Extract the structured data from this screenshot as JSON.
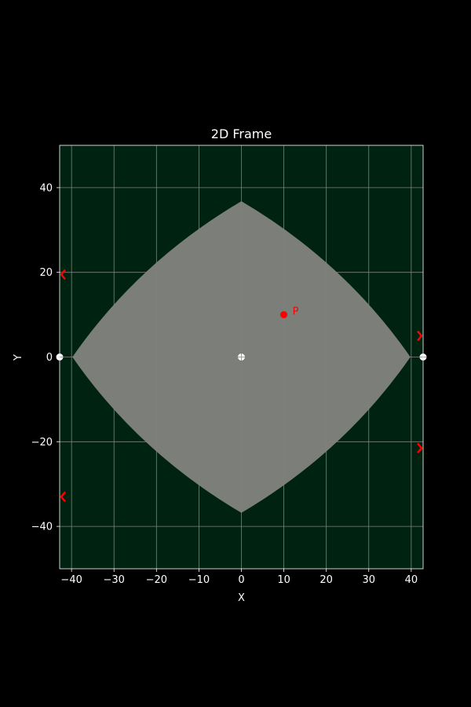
{
  "chart_data": {
    "type": "scatter",
    "title": "2D Frame",
    "xlabel": "X",
    "ylabel": "Y",
    "xlim": [
      -42.8,
      42.8
    ],
    "ylim": [
      -50,
      50
    ],
    "grid": true,
    "x_ticks": [
      -40,
      -30,
      -20,
      -10,
      0,
      10,
      20,
      30,
      40
    ],
    "y_ticks": [
      -40,
      -20,
      0,
      20,
      40
    ],
    "x_tick_labels": [
      "−40",
      "−30",
      "−20",
      "−10",
      "0",
      "10",
      "20",
      "30",
      "40"
    ],
    "y_tick_labels": [
      "−40",
      "−20",
      "0",
      "20",
      "40"
    ],
    "region": {
      "shape": "curved-diamond",
      "vertices": [
        [
          0,
          36.8
        ],
        [
          39.8,
          0
        ],
        [
          0,
          -36.8
        ],
        [
          -39.8,
          0
        ]
      ],
      "fill_color": "#7c7e7a"
    },
    "background_color": "#002211",
    "grid_color": "#808080",
    "points": [
      {
        "x": 10,
        "y": 10,
        "label": "P",
        "color": "#ff0000"
      }
    ],
    "frame_markers": [
      {
        "x": 0,
        "y": 0,
        "color": "#ffffff"
      },
      {
        "x": -42.8,
        "y": 0,
        "color": "#ffffff"
      },
      {
        "x": 42.8,
        "y": 0,
        "color": "#ffffff"
      }
    ],
    "edge_markers": [
      {
        "side": "left",
        "y": 19.5,
        "direction": "left",
        "color": "#ff0000"
      },
      {
        "side": "left",
        "y": -33,
        "direction": "left",
        "color": "#ff0000"
      },
      {
        "side": "right",
        "y": 5,
        "direction": "right",
        "color": "#ff0000"
      },
      {
        "side": "right",
        "y": -21.5,
        "direction": "right",
        "color": "#ff0000"
      }
    ]
  }
}
